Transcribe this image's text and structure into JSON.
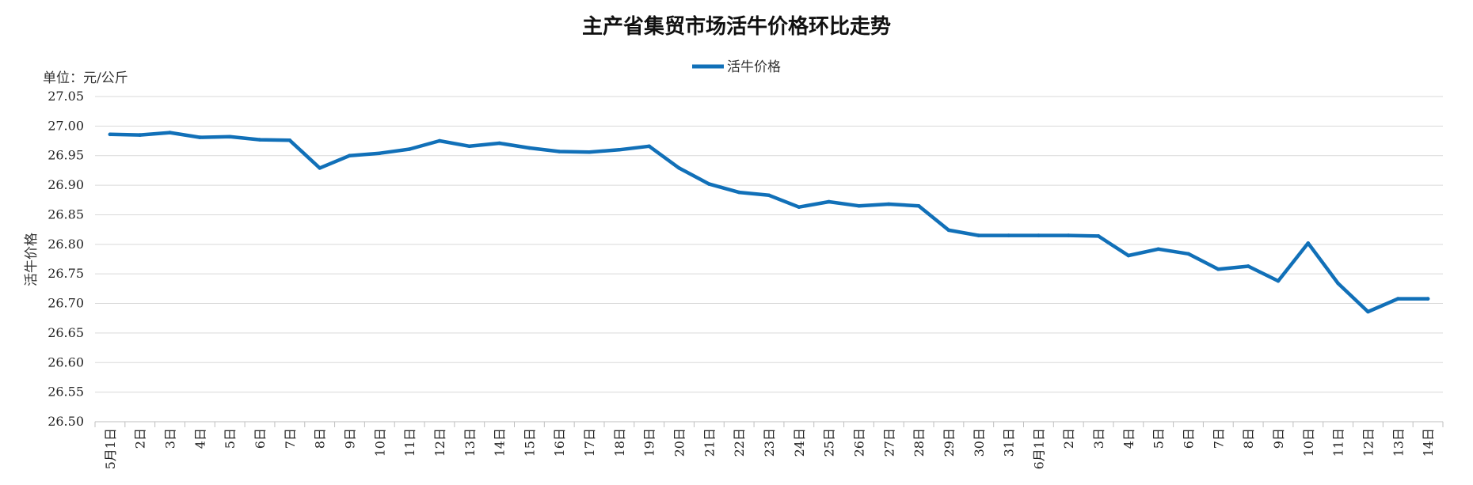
{
  "chart_data": {
    "type": "line",
    "title": "主产省集贸市场活牛价格环比走势",
    "unit_label": "单位：元/公斤",
    "ylabel": "活牛价格",
    "xlabel": "",
    "ylim": [
      26.5,
      27.05
    ],
    "yticks": [
      "26.50",
      "26.55",
      "26.60",
      "26.65",
      "26.70",
      "26.75",
      "26.80",
      "26.85",
      "26.90",
      "26.95",
      "27.00",
      "27.05"
    ],
    "grid": true,
    "legend": "top-center",
    "categories": [
      "5月1日",
      "2日",
      "3日",
      "4日",
      "5日",
      "6日",
      "7日",
      "8日",
      "9日",
      "10日",
      "11日",
      "12日",
      "13日",
      "14日",
      "15日",
      "16日",
      "17日",
      "18日",
      "19日",
      "20日",
      "21日",
      "22日",
      "23日",
      "24日",
      "25日",
      "26日",
      "27日",
      "28日",
      "29日",
      "30日",
      "31日",
      "6月1日",
      "2日",
      "3日",
      "4日",
      "5日",
      "6日",
      "7日",
      "8日",
      "9日",
      "10日",
      "11日",
      "12日",
      "13日",
      "14日"
    ],
    "series": [
      {
        "name": "活牛价格",
        "color": "#1170b8",
        "values": [
          26.986,
          26.985,
          26.989,
          26.981,
          26.982,
          26.977,
          26.976,
          26.929,
          26.95,
          26.954,
          26.961,
          26.975,
          26.966,
          26.971,
          26.963,
          26.957,
          26.956,
          26.96,
          26.966,
          26.929,
          26.902,
          26.888,
          26.883,
          26.863,
          26.872,
          26.865,
          26.868,
          26.865,
          26.824,
          26.815,
          26.815,
          26.815,
          26.815,
          26.814,
          26.781,
          26.792,
          26.784,
          26.758,
          26.763,
          26.738,
          26.802,
          26.734,
          26.686,
          26.708,
          26.708
        ]
      }
    ]
  }
}
